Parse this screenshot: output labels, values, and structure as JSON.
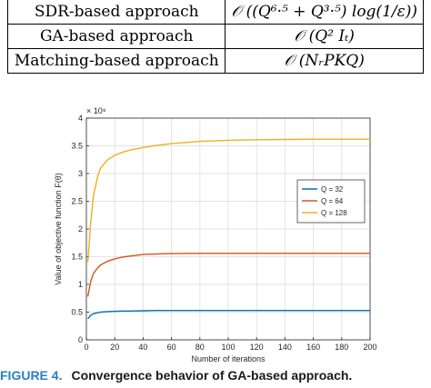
{
  "table": {
    "rows": [
      {
        "approach": "SDR-based approach",
        "complexity": "𝒪 ((Q⁶·⁵ + Q³·⁵) log(1/ε))"
      },
      {
        "approach": "GA-based approach",
        "complexity": "𝒪 (Q² Iₜ)"
      },
      {
        "approach": "Matching-based approach",
        "complexity": "𝒪 (NᵣPKQ)"
      }
    ]
  },
  "chart_data": {
    "type": "line",
    "xlabel": "Number of iterations",
    "ylabel": "Value of objective function F(θ)",
    "y_multiplier": "× 10⁹",
    "xlim": [
      0,
      200
    ],
    "ylim": [
      0,
      4
    ],
    "xticks": [
      "0",
      "20",
      "40",
      "60",
      "80",
      "100",
      "120",
      "140",
      "160",
      "180",
      "200"
    ],
    "yticks": [
      "0",
      "0.5",
      "1",
      "1.5",
      "2",
      "2.5",
      "3",
      "3.5",
      "4"
    ],
    "grid": true,
    "legend_position": "right-middle",
    "x": [
      1,
      3,
      5,
      8,
      10,
      15,
      20,
      25,
      30,
      40,
      50,
      60,
      80,
      100,
      120,
      140,
      160,
      180,
      200
    ],
    "series": [
      {
        "name": "Q = 32",
        "color": "#0072BD",
        "values": [
          0.38,
          0.44,
          0.47,
          0.49,
          0.5,
          0.51,
          0.515,
          0.52,
          0.52,
          0.525,
          0.53,
          0.53,
          0.53,
          0.53,
          0.53,
          0.53,
          0.53,
          0.53,
          0.53
        ]
      },
      {
        "name": "Q = 64",
        "color": "#D95319",
        "values": [
          0.78,
          1.05,
          1.2,
          1.3,
          1.35,
          1.42,
          1.46,
          1.49,
          1.51,
          1.54,
          1.55,
          1.555,
          1.56,
          1.56,
          1.56,
          1.56,
          1.56,
          1.56,
          1.56
        ]
      },
      {
        "name": "Q = 128",
        "color": "#EDB120",
        "values": [
          1.4,
          2.1,
          2.6,
          2.95,
          3.1,
          3.25,
          3.33,
          3.38,
          3.42,
          3.47,
          3.51,
          3.54,
          3.58,
          3.6,
          3.61,
          3.615,
          3.62,
          3.62,
          3.62
        ]
      }
    ]
  },
  "caption": {
    "label": "FIGURE 4.",
    "text": "Convergence behavior of GA-based approach."
  }
}
